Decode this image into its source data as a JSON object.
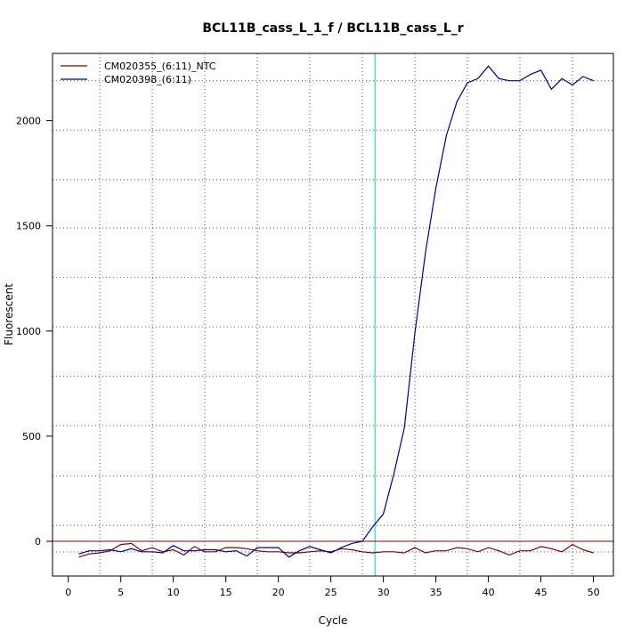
{
  "chart_data": {
    "type": "line",
    "title": "BCL11B_cass_L_1_f / BCL11B_cass_L_r",
    "xlabel": "Cycle",
    "ylabel": "Fluorescent",
    "xlim": [
      -1.5,
      51.9
    ],
    "ylim": [
      -165,
      2320
    ],
    "x_ticks": [
      0,
      5,
      10,
      15,
      20,
      25,
      30,
      35,
      40,
      45,
      50
    ],
    "y_ticks": [
      0,
      500,
      1000,
      1500,
      2000
    ],
    "grid": true,
    "grid_x": [
      3,
      8,
      13,
      18,
      23,
      28,
      33,
      38,
      43,
      48
    ],
    "grid_y": [
      -50,
      75,
      310,
      550,
      785,
      1020,
      1255,
      1490,
      1720,
      1955,
      2190
    ],
    "threshold_y": 0,
    "threshold_color": "#8B0000",
    "cycle_marker_x": 29.2,
    "cycle_marker_color": "#00CDCD",
    "legend_position": "top-left",
    "x": [
      1,
      2,
      3,
      4,
      5,
      6,
      7,
      8,
      9,
      10,
      11,
      12,
      13,
      14,
      15,
      16,
      17,
      18,
      19,
      20,
      21,
      22,
      23,
      24,
      25,
      26,
      27,
      28,
      29,
      30,
      31,
      32,
      33,
      34,
      35,
      36,
      37,
      38,
      39,
      40,
      41,
      42,
      43,
      44,
      45,
      46,
      47,
      48,
      49,
      50
    ],
    "series": [
      {
        "name": "CM020355_(6:11)_NTC",
        "color": "#8B0000",
        "values": [
          -75,
          -60,
          -55,
          -45,
          -15,
          -10,
          -45,
          -30,
          -50,
          -40,
          -65,
          -25,
          -50,
          -50,
          -30,
          -30,
          -35,
          -45,
          -50,
          -50,
          -55,
          -55,
          -50,
          -45,
          -50,
          -35,
          -40,
          -50,
          -55,
          -50,
          -50,
          -55,
          -30,
          -55,
          -45,
          -45,
          -30,
          -35,
          -50,
          -30,
          -45,
          -65,
          -45,
          -45,
          -25,
          -35,
          -50,
          -15,
          -40,
          -55
        ]
      },
      {
        "name": "CM020398_(6:11)",
        "color": "#00008B",
        "values": [
          -60,
          -45,
          -45,
          -40,
          -50,
          -35,
          -50,
          -50,
          -55,
          -20,
          -45,
          -45,
          -40,
          -40,
          -50,
          -45,
          -70,
          -30,
          -30,
          -30,
          -75,
          -45,
          -25,
          -40,
          -55,
          -30,
          -10,
          0,
          70,
          130,
          320,
          540,
          990,
          1370,
          1680,
          1930,
          2090,
          2180,
          2200,
          2260,
          2200,
          2190,
          2190,
          2220,
          2240,
          2150,
          2200,
          2170,
          2210,
          2190
        ]
      }
    ]
  }
}
